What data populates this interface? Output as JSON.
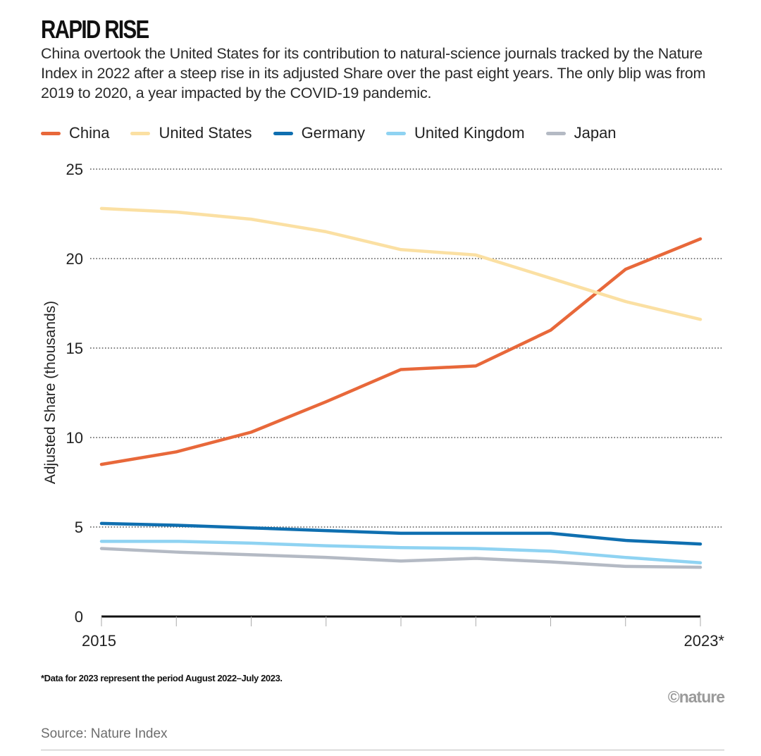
{
  "header": {
    "title": "RAPID RISE",
    "subtitle": "China overtook the United States for its contribution to natural-science journals tracked by the Nature Index in 2022 after a steep rise in its adjusted Share over the past eight years. The only blip was from 2019 to 2020, a year impacted by the COVID-19 pandemic."
  },
  "footer": {
    "footnote": "*Data for 2023 represent the period August 2022–July 2023.",
    "brand": "©nature",
    "source": "Source: Nature Index"
  },
  "chart_data": {
    "type": "line",
    "title": "RAPID RISE",
    "xlabel": "",
    "ylabel": "Adjusted Share (thousands)",
    "x": [
      "2015",
      "2016",
      "2017",
      "2018",
      "2019",
      "2020",
      "2021",
      "2022",
      "2023*"
    ],
    "x_tick_labels": [
      "2015",
      "",
      "",
      "",
      "",
      "",
      "",
      "",
      "2023*"
    ],
    "ylim": [
      0,
      25
    ],
    "y_ticks": [
      0,
      5,
      10,
      15,
      20,
      25
    ],
    "grid": true,
    "legend_position": "top",
    "series": [
      {
        "name": "China",
        "color": "#e8683a",
        "values": [
          8.5,
          9.2,
          10.3,
          12.0,
          13.8,
          14.0,
          16.0,
          19.4,
          21.1
        ]
      },
      {
        "name": "United States",
        "color": "#fbe0a3",
        "values": [
          22.8,
          22.6,
          22.2,
          21.5,
          20.5,
          20.2,
          18.9,
          17.6,
          16.6
        ]
      },
      {
        "name": "Germany",
        "color": "#0f6fb0",
        "values": [
          5.2,
          5.1,
          4.95,
          4.8,
          4.65,
          4.65,
          4.65,
          4.25,
          4.05
        ]
      },
      {
        "name": "United Kingdom",
        "color": "#8fd3f2",
        "values": [
          4.2,
          4.2,
          4.1,
          3.95,
          3.85,
          3.8,
          3.65,
          3.3,
          3.0
        ]
      },
      {
        "name": "Japan",
        "color": "#b4bac4",
        "values": [
          3.8,
          3.6,
          3.45,
          3.3,
          3.1,
          3.25,
          3.05,
          2.8,
          2.75
        ]
      }
    ]
  }
}
